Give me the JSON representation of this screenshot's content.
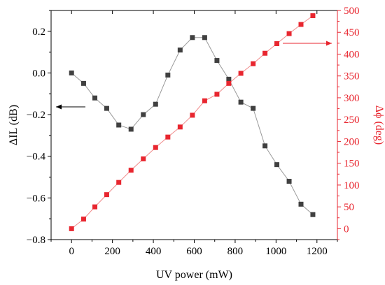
{
  "chart_data": {
    "type": "scatter",
    "xlabel": "UV power (mW)",
    "ylabel_left": "ΔIL (dB)",
    "ylabel_right": "Δϕ (deg)",
    "xlim": [
      -100,
      1300
    ],
    "ylim_left": [
      -0.8,
      0.3
    ],
    "ylim_right": [
      -25,
      500
    ],
    "x_ticks": [
      0,
      200,
      400,
      600,
      800,
      1000,
      1200
    ],
    "y_left_ticks": [
      0.2,
      0.0,
      -0.2,
      -0.4,
      -0.6,
      -0.8
    ],
    "y_left_tick_labels": [
      "0.2",
      "0.0",
      "−0.2",
      "−0.4",
      "−0.6",
      "−0.8"
    ],
    "y_right_ticks": [
      0,
      50,
      100,
      150,
      200,
      250,
      300,
      350,
      400,
      450,
      500
    ],
    "grid": false,
    "colors": {
      "left": "#404040",
      "right": "#e8262f",
      "left_line": "#9a9a9a",
      "right_line": "#f08a8a"
    },
    "series": [
      {
        "axis": "left",
        "x": [
          0,
          59,
          114,
          172,
          231,
          291,
          351,
          411,
          471,
          531,
          591,
          651,
          711,
          769,
          828,
          888,
          946,
          1004,
          1064,
          1122,
          1180
        ],
        "values": [
          0.0,
          -0.05,
          -0.12,
          -0.17,
          -0.25,
          -0.27,
          -0.2,
          -0.15,
          -0.01,
          0.11,
          0.17,
          0.17,
          0.06,
          -0.03,
          -0.14,
          -0.17,
          -0.35,
          -0.44,
          -0.52,
          -0.63,
          -0.68
        ]
      },
      {
        "axis": "right",
        "x": [
          0,
          59,
          114,
          172,
          231,
          291,
          351,
          411,
          471,
          531,
          591,
          651,
          711,
          769,
          828,
          888,
          946,
          1004,
          1064,
          1122,
          1180
        ],
        "values": [
          0,
          22,
          50,
          78,
          106,
          134,
          160,
          186,
          210,
          233,
          260,
          293,
          308,
          333,
          356,
          378,
          402,
          424,
          447,
          468,
          488
        ]
      }
    ]
  }
}
